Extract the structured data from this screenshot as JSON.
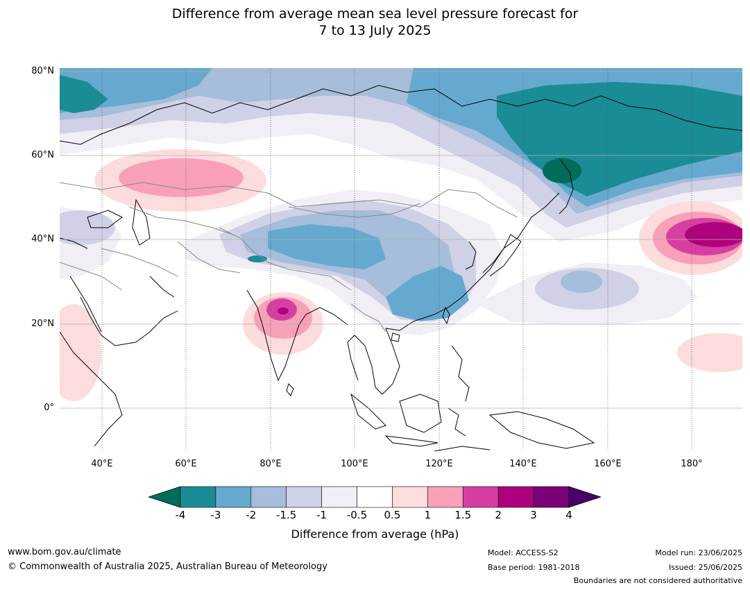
{
  "title_line1": "Difference from average mean sea level pressure forecast for",
  "title_line2": "7 to 13 July 2025",
  "map": {
    "lat_labels": [
      "80°N",
      "60°N",
      "40°N",
      "20°N",
      "0°"
    ],
    "lon_labels": [
      "40°E",
      "60°E",
      "80°E",
      "100°E",
      "120°E",
      "140°E",
      "160°E",
      "180°"
    ],
    "extent": {
      "lon_min": 30,
      "lon_max": 192,
      "lat_min": -10,
      "lat_max": 81
    }
  },
  "colorbar": {
    "ticks": [
      "-4",
      "-3",
      "-2",
      "-1.5",
      "-1",
      "-0.5",
      "0.5",
      "1",
      "1.5",
      "2",
      "3",
      "4"
    ],
    "colors": [
      "#1a8c96",
      "#66a9cf",
      "#a6bddb",
      "#d0d1e6",
      "#f1eef6",
      "#ffffff",
      "#fcdcdc",
      "#f9a0b9",
      "#d63fa1",
      "#ae017e",
      "#7a0177"
    ],
    "under_color": "#016c59",
    "over_color": "#49006a",
    "label": "Difference from average (hPa)"
  },
  "footer": {
    "website": "www.bom.gov.au/climate",
    "copyright": "© Commonwealth of Australia 2025, Australian Bureau of Meteorology",
    "model": "Model: ACCESS-S2",
    "base_period": "Base period: 1981-2018",
    "model_run": "Model run: 23/06/2025",
    "issued": "Issued: 25/06/2025",
    "disclaimer": "Boundaries are not considered authoritative"
  }
}
